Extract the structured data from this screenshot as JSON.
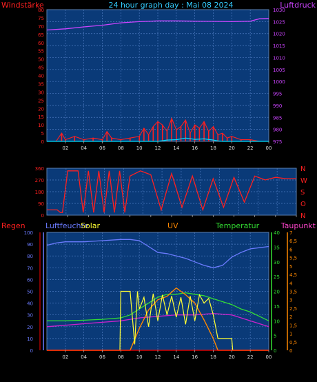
{
  "title": "24 hour graph day : Mai 08 2024",
  "colors": {
    "wind": "#ff2020",
    "gust": "#00e0ff",
    "pressure": "#cc44ff",
    "direction": "#ff2020",
    "rain": "#ff0000",
    "humidity": "#6b7bff",
    "solar": "#ffff33",
    "uv": "#ff8800",
    "temperature": "#33dd33",
    "dewpoint": "#cc22cc",
    "plot_bg": "#0a3a78",
    "grid": "#4c79c0"
  },
  "x_ticks": [
    "02",
    "04",
    "06",
    "08",
    "10",
    "12",
    "14",
    "16",
    "18",
    "20",
    "22",
    "00"
  ],
  "chart_data": [
    {
      "type": "line",
      "title": "24 hour graph day : Mai 08 2024",
      "left_label": "Windstärke",
      "right_label": "Luftdruck",
      "xlim": [
        0,
        24
      ],
      "left_ticks": [
        "0",
        "5",
        "10",
        "15",
        "20",
        "25",
        "30",
        "35",
        "40",
        "45",
        "50",
        "55",
        "60",
        "65",
        "70",
        "75",
        "80"
      ],
      "right_ticks": [
        "975",
        "980",
        "985",
        "990",
        "995",
        "1000",
        "1005",
        "1010",
        "1015",
        "1020",
        "1025",
        "1030"
      ],
      "left_ylim": [
        0,
        80
      ],
      "right_ylim": [
        975,
        1030
      ],
      "series": [
        {
          "name": "Windstärke",
          "axis": "left",
          "x": [
            0,
            1,
            1.6,
            2,
            3,
            4,
            5,
            6,
            6.5,
            7,
            8,
            9,
            10,
            10.5,
            11,
            11.5,
            12,
            12.5,
            13,
            13.5,
            14,
            14.5,
            15,
            15.5,
            16,
            16.5,
            17,
            17.5,
            18,
            18.5,
            19,
            19.5,
            20,
            21,
            22,
            23,
            24
          ],
          "values": [
            0,
            0,
            5,
            1,
            3,
            1,
            2,
            1,
            6,
            2,
            1,
            2,
            3,
            8,
            4,
            9,
            12,
            10,
            6,
            14,
            7,
            9,
            13,
            5,
            10,
            8,
            12,
            6,
            9,
            4,
            5,
            2,
            3,
            1,
            1,
            0,
            0
          ]
        },
        {
          "name": "Luftdruck",
          "axis": "right",
          "x": [
            0,
            2,
            4,
            6,
            8,
            10,
            12,
            14,
            16,
            18,
            20,
            22,
            23,
            24
          ],
          "values": [
            1021.5,
            1022,
            1022.8,
            1023.5,
            1024.5,
            1025,
            1025.3,
            1025.3,
            1025.2,
            1025.1,
            1025,
            1025.2,
            1026.2,
            1026.3
          ]
        },
        {
          "name": "Böen",
          "axis": "left",
          "x": [
            0,
            12,
            13,
            14,
            15,
            16,
            17,
            18,
            18.5,
            19,
            24
          ],
          "values": [
            0,
            0,
            0.8,
            1,
            2,
            1.2,
            1.5,
            0.8,
            0.3,
            0,
            0
          ]
        }
      ]
    },
    {
      "type": "line",
      "title": "",
      "left_ticks": [
        "0",
        "90",
        "180",
        "270",
        "360"
      ],
      "right_ticks": [
        "N",
        "W",
        "S",
        "O",
        "N"
      ],
      "ylim": [
        0,
        360
      ],
      "xlim": [
        0,
        24
      ],
      "series": [
        {
          "name": "Windrichtung",
          "x": [
            0,
            1,
            1.3,
            1.5,
            2,
            3,
            3.5,
            4,
            4.5,
            5,
            5.5,
            6,
            6.5,
            7,
            7.5,
            8,
            9,
            10,
            11,
            12,
            13,
            14,
            15,
            16,
            17,
            18,
            19,
            20,
            21,
            22,
            23,
            24
          ],
          "values": [
            40,
            40,
            20,
            20,
            340,
            340,
            20,
            340,
            20,
            340,
            20,
            340,
            20,
            340,
            20,
            300,
            340,
            310,
            40,
            320,
            60,
            300,
            40,
            280,
            60,
            290,
            100,
            300,
            270,
            290,
            280,
            280
          ]
        }
      ]
    },
    {
      "type": "line",
      "title": "",
      "labels": [
        "Regen",
        "Luftfeuchte",
        "Solar",
        "UV",
        "Temperatur",
        "Taupunkt"
      ],
      "xlim": [
        0,
        24
      ],
      "left_ticks": [
        "0",
        "10",
        "20",
        "30",
        "40",
        "50",
        "60",
        "70",
        "80",
        "90",
        "100"
      ],
      "temperature_ticks": [
        "0",
        "5",
        "10",
        "15",
        "20",
        "25",
        "30",
        "35",
        "40"
      ],
      "uv_ticks": [
        "0",
        "0,5",
        "1",
        "1,5",
        "2",
        "2,5",
        "3",
        "3,5",
        "4",
        "4,5",
        "5",
        "5,5",
        "6",
        "6,5",
        "7"
      ],
      "left_ylim": [
        0,
        100
      ],
      "temperature_ylim": [
        0,
        40
      ],
      "uv_ylim": [
        0,
        7
      ],
      "series": [
        {
          "name": "Luftfeuchte",
          "axis": "left",
          "x": [
            0,
            1,
            2,
            4,
            6,
            8,
            9,
            10,
            11,
            12,
            13,
            14,
            15,
            16,
            17,
            18,
            19,
            20,
            21,
            22,
            23,
            24
          ],
          "values": [
            89,
            91,
            92,
            92,
            93,
            94,
            94,
            93,
            88,
            83,
            82,
            80,
            78,
            75,
            72,
            70,
            72,
            79,
            83,
            86,
            87,
            88
          ]
        },
        {
          "name": "Temperatur",
          "axis": "temperature",
          "x": [
            0,
            2,
            4,
            6,
            8,
            9,
            10,
            11,
            12,
            13,
            14,
            15,
            16,
            17,
            18,
            19,
            20,
            21,
            22,
            23,
            24
          ],
          "values": [
            10,
            10,
            10.2,
            10.5,
            11,
            12,
            14,
            16,
            18,
            19,
            19,
            19.5,
            19,
            18.5,
            17.5,
            16.5,
            15.5,
            14,
            13,
            11.5,
            10
          ]
        },
        {
          "name": "Taupunkt",
          "axis": "temperature",
          "x": [
            0,
            2,
            4,
            6,
            8,
            10,
            12,
            14,
            16,
            18,
            20,
            21,
            22,
            23,
            24
          ],
          "values": [
            8,
            8.5,
            9,
            9.5,
            10,
            11,
            11.5,
            12,
            12,
            12.5,
            12,
            11,
            10,
            9,
            8
          ]
        },
        {
          "name": "Solar",
          "axis": "left",
          "x": [
            0,
            7.9,
            8,
            9,
            9.5,
            9.8,
            10,
            10.5,
            11,
            11.5,
            12,
            12.5,
            13,
            13.5,
            14,
            14.5,
            15,
            15.5,
            16,
            16.5,
            17,
            17.5,
            18,
            18.5,
            19,
            19.5,
            20,
            20.1,
            24
          ],
          "values": [
            0,
            0,
            50,
            50,
            5,
            50,
            35,
            45,
            20,
            48,
            25,
            47,
            30,
            46,
            28,
            45,
            22,
            46,
            25,
            47,
            40,
            44,
            30,
            10,
            10,
            10,
            10,
            0,
            0
          ]
        },
        {
          "name": "UV",
          "axis": "uv",
          "x": [
            0,
            9,
            10,
            11,
            12,
            13,
            14,
            15,
            16,
            17,
            18,
            18.5,
            24
          ],
          "values": [
            0,
            0,
            1.3,
            2.4,
            3,
            3.2,
            3.7,
            3.3,
            2.8,
            1.8,
            0.7,
            0,
            0
          ]
        },
        {
          "name": "Regen",
          "axis": "left",
          "x": [
            0,
            24
          ],
          "values": [
            0,
            0
          ]
        }
      ]
    }
  ]
}
